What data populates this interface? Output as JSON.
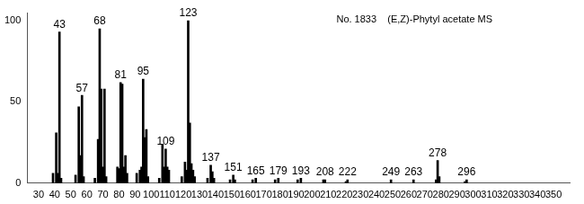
{
  "chart_data": {
    "type": "bar",
    "title": "No. 1833    (E,Z)-Phytyl acetate MS",
    "x": [
      39,
      41,
      42,
      43,
      44,
      53,
      55,
      56,
      57,
      58,
      65,
      67,
      68,
      69,
      70,
      71,
      72,
      79,
      80,
      81,
      82,
      83,
      84,
      85,
      91,
      93,
      94,
      95,
      96,
      97,
      98,
      105,
      107,
      108,
      109,
      110,
      111,
      119,
      121,
      122,
      123,
      124,
      125,
      126,
      127,
      135,
      137,
      138,
      139,
      149,
      151,
      152,
      163,
      165,
      177,
      179,
      191,
      193,
      207,
      208,
      221,
      222,
      249,
      263,
      277,
      278,
      279,
      295,
      296
    ],
    "values": [
      6,
      31,
      6,
      93,
      3,
      5,
      47,
      17,
      54,
      4,
      3,
      27,
      95,
      58,
      10,
      58,
      4,
      10,
      9,
      62,
      61,
      10,
      17,
      6,
      6,
      8,
      10,
      64,
      28,
      33,
      4,
      3,
      24,
      10,
      21,
      10,
      8,
      4,
      13,
      8,
      100,
      37,
      12,
      8,
      4,
      3,
      11,
      7,
      3,
      2,
      5,
      2,
      2,
      3,
      2,
      3,
      2,
      3,
      2,
      2,
      1,
      2,
      2,
      2,
      2,
      14,
      4,
      1,
      2
    ],
    "annotations": [
      43,
      57,
      68,
      81,
      95,
      109,
      123,
      137,
      151,
      165,
      179,
      193,
      208,
      222,
      249,
      263,
      278,
      296
    ],
    "color": "#000000",
    "xlim": [
      23,
      360
    ],
    "xticks": [
      30,
      40,
      50,
      60,
      70,
      80,
      90,
      100,
      110,
      120,
      130,
      140,
      150,
      160,
      170,
      180,
      190,
      200,
      210,
      220,
      230,
      240,
      250,
      260,
      270,
      280,
      290,
      300,
      310,
      320,
      330,
      340,
      350
    ],
    "ylim": [
      0,
      105
    ],
    "yticks": [
      0,
      50,
      100
    ],
    "grid": false
  }
}
